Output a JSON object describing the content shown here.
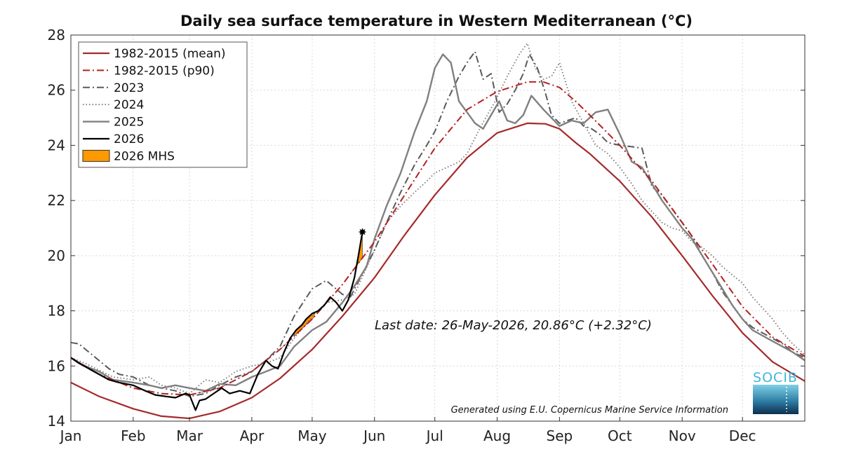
{
  "chart_data": {
    "type": "line",
    "title": "Daily sea surface temperature in Western Mediterranean (°C)",
    "xlabel": "",
    "ylabel": "",
    "xlim": [
      1,
      366
    ],
    "ylim": [
      14,
      28
    ],
    "yticks": [
      14,
      16,
      18,
      20,
      22,
      24,
      26,
      28
    ],
    "xticks": [
      {
        "label": "Jan",
        "day": 1
      },
      {
        "label": "Feb",
        "day": 32
      },
      {
        "label": "Mar",
        "day": 60
      },
      {
        "label": "Apr",
        "day": 91
      },
      {
        "label": "May",
        "day": 121
      },
      {
        "label": "Jun",
        "day": 152
      },
      {
        "label": "Jul",
        "day": 182
      },
      {
        "label": "Aug",
        "day": 213
      },
      {
        "label": "Sep",
        "day": 244
      },
      {
        "label": "Oct",
        "day": 274
      },
      {
        "label": "Nov",
        "day": 305
      },
      {
        "label": "Dec",
        "day": 335
      }
    ],
    "grid": true,
    "legend_position": "top-left",
    "series": [
      {
        "name": "1982-2015 (mean)",
        "color": "#a52a2a",
        "style": "solid",
        "x": [
          1,
          15,
          32,
          46,
          60,
          75,
          91,
          105,
          121,
          136,
          152,
          167,
          182,
          198,
          213,
          228,
          237,
          244,
          252,
          259,
          274,
          290,
          305,
          320,
          335,
          350,
          366
        ],
        "y": [
          15.4,
          14.9,
          14.45,
          14.18,
          14.1,
          14.35,
          14.85,
          15.55,
          16.6,
          17.8,
          19.2,
          20.75,
          22.2,
          23.55,
          24.45,
          24.8,
          24.78,
          24.6,
          24.1,
          23.7,
          22.7,
          21.4,
          20.0,
          18.55,
          17.2,
          16.15,
          15.45
        ]
      },
      {
        "name": "1982-2015 (p90)",
        "color": "#b22222",
        "style": "dashdot",
        "x": [
          1,
          15,
          32,
          46,
          60,
          75,
          91,
          105,
          121,
          136,
          152,
          167,
          182,
          198,
          213,
          228,
          236,
          244,
          252,
          259,
          274,
          290,
          305,
          320,
          335,
          350,
          366
        ],
        "y": [
          16.3,
          15.7,
          15.2,
          15.0,
          14.95,
          15.2,
          15.8,
          16.6,
          17.7,
          18.95,
          20.5,
          22.2,
          23.9,
          25.3,
          25.95,
          26.3,
          26.3,
          26.1,
          25.6,
          25.1,
          24.0,
          22.7,
          21.2,
          19.7,
          18.15,
          17.05,
          16.35
        ]
      },
      {
        "name": "2023",
        "color": "#5a5a5a",
        "style": "dashdot",
        "x": [
          1,
          5,
          10,
          15,
          20,
          25,
          32,
          40,
          46,
          53,
          60,
          68,
          75,
          83,
          91,
          98,
          105,
          112,
          121,
          128,
          136,
          140,
          145,
          152,
          158,
          165,
          172,
          178,
          182,
          188,
          194,
          198,
          202,
          206,
          210,
          214,
          218,
          222,
          226,
          229,
          233,
          237,
          240,
          244,
          248,
          252,
          256,
          260,
          264,
          268,
          274,
          280,
          285,
          290,
          295,
          300,
          305,
          310,
          315,
          320,
          325,
          330,
          335,
          340,
          345,
          350,
          355,
          360,
          366
        ],
        "y": [
          16.85,
          16.8,
          16.5,
          16.2,
          15.9,
          15.7,
          15.6,
          15.3,
          15.2,
          15.1,
          14.9,
          15.0,
          15.3,
          15.6,
          15.8,
          16.2,
          16.7,
          17.8,
          18.8,
          19.1,
          18.6,
          18.5,
          19.2,
          20.2,
          21.2,
          22.3,
          23.3,
          24.0,
          24.5,
          25.6,
          26.5,
          27.0,
          27.4,
          26.4,
          26.6,
          25.2,
          25.5,
          26.0,
          26.6,
          27.3,
          26.8,
          25.9,
          25.1,
          24.8,
          24.9,
          25.0,
          24.7,
          24.6,
          24.4,
          24.1,
          24.0,
          23.95,
          23.9,
          22.5,
          22.2,
          21.7,
          21.2,
          20.7,
          20.0,
          19.4,
          18.7,
          18.2,
          17.7,
          17.4,
          17.2,
          17.0,
          16.8,
          16.5,
          16.3
        ]
      },
      {
        "name": "2024",
        "color": "#777777",
        "style": "dotted",
        "x": [
          1,
          8,
          15,
          22,
          32,
          40,
          46,
          53,
          60,
          68,
          75,
          83,
          91,
          98,
          105,
          112,
          121,
          128,
          136,
          142,
          152,
          158,
          165,
          172,
          178,
          182,
          188,
          194,
          198,
          205,
          212,
          218,
          224,
          228,
          232,
          236,
          240,
          244,
          250,
          256,
          262,
          268,
          274,
          280,
          285,
          290,
          295,
          300,
          305,
          310,
          315,
          320,
          325,
          330,
          335,
          340,
          345,
          350,
          355,
          360,
          366
        ],
        "y": [
          16.3,
          16.1,
          15.85,
          15.6,
          15.5,
          15.6,
          15.3,
          15.2,
          15.0,
          15.5,
          15.4,
          15.8,
          16.0,
          16.1,
          16.3,
          17.0,
          17.8,
          18.3,
          18.4,
          18.6,
          20.2,
          21.2,
          21.8,
          22.3,
          22.7,
          23.0,
          23.2,
          23.4,
          23.7,
          24.7,
          25.6,
          26.5,
          27.3,
          27.7,
          26.8,
          26.4,
          26.5,
          27.0,
          25.6,
          24.8,
          24.0,
          23.7,
          23.2,
          22.6,
          22.0,
          21.6,
          21.2,
          21.0,
          20.9,
          20.5,
          20.3,
          20.0,
          19.6,
          19.3,
          19.0,
          18.5,
          18.1,
          17.7,
          17.2,
          16.8,
          16.4
        ]
      },
      {
        "name": "2025",
        "color": "#808080",
        "style": "solid",
        "x": [
          1,
          8,
          15,
          22,
          32,
          40,
          46,
          53,
          60,
          68,
          75,
          83,
          91,
          98,
          105,
          112,
          121,
          128,
          136,
          142,
          148,
          152,
          158,
          165,
          172,
          178,
          182,
          186,
          190,
          194,
          198,
          202,
          206,
          210,
          214,
          218,
          222,
          226,
          230,
          236,
          240,
          244,
          250,
          256,
          262,
          268,
          274,
          280,
          285,
          290,
          295,
          300,
          305,
          310,
          315,
          320,
          325,
          330,
          335,
          340,
          345,
          350,
          355,
          360,
          366
        ],
        "y": [
          16.3,
          16.0,
          15.8,
          15.5,
          15.4,
          15.3,
          15.2,
          15.3,
          15.2,
          15.1,
          15.35,
          15.3,
          15.6,
          15.8,
          16.0,
          16.7,
          17.3,
          17.6,
          18.3,
          18.9,
          19.6,
          20.6,
          21.8,
          23.0,
          24.5,
          25.6,
          26.8,
          27.3,
          27.0,
          25.6,
          25.2,
          24.8,
          24.6,
          25.1,
          25.6,
          24.9,
          24.8,
          25.1,
          25.8,
          25.3,
          25.0,
          24.7,
          24.9,
          24.8,
          25.2,
          25.3,
          24.4,
          23.4,
          23.2,
          22.6,
          22.0,
          21.5,
          21.0,
          20.6,
          20.0,
          19.4,
          18.8,
          18.2,
          17.7,
          17.3,
          17.1,
          16.9,
          16.7,
          16.5,
          16.2
        ]
      },
      {
        "name": "2026",
        "color": "#000000",
        "style": "solid",
        "x": [
          1,
          5,
          10,
          15,
          20,
          25,
          32,
          38,
          43,
          48,
          53,
          58,
          60,
          63,
          65,
          68,
          72,
          76,
          80,
          85,
          90,
          94,
          98,
          101,
          104,
          107,
          110,
          113,
          116,
          118,
          121,
          124,
          127,
          130,
          133,
          136,
          139,
          142,
          144,
          146
        ],
        "y": [
          16.3,
          16.1,
          15.9,
          15.7,
          15.5,
          15.4,
          15.3,
          15.1,
          14.95,
          14.9,
          14.85,
          15.0,
          14.95,
          14.4,
          14.75,
          14.8,
          15.0,
          15.2,
          15.0,
          15.1,
          15.0,
          15.7,
          16.2,
          16.0,
          15.9,
          16.5,
          17.0,
          17.3,
          17.5,
          17.7,
          17.9,
          18.0,
          18.2,
          18.5,
          18.3,
          18.0,
          18.4,
          19.2,
          20.0,
          20.86
        ]
      }
    ],
    "mhs_name": "2026 MHS",
    "mhs_color": "#ff9900",
    "mhs_ranges": [
      [
        1,
        5
      ],
      [
        64,
        67
      ],
      [
        72,
        78
      ],
      [
        104,
        108
      ],
      [
        112,
        122
      ],
      [
        140,
        146
      ]
    ],
    "last_point": {
      "x": 146,
      "y": 20.86
    },
    "annotations": [
      {
        "text": "Last date: 26-May-2026, 20.86°C (+2.32°C)"
      },
      {
        "text": "Generated using E.U. Copernicus Marine Service Information"
      }
    ]
  },
  "logo": {
    "text": "SOCIB"
  }
}
